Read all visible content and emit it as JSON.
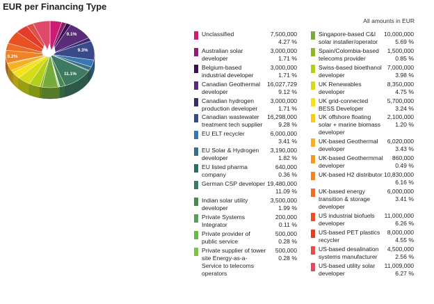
{
  "chart_data": {
    "type": "pie",
    "title": "EUR per Financing Type",
    "note": "All amounts in EUR",
    "slices": [
      {
        "label": "Unclassified",
        "amount": "7,500,000",
        "percent": "4.27 %",
        "value": 7500000,
        "color": "#d01b72"
      },
      {
        "label": "Australian solar developer",
        "amount": "3,000,000",
        "percent": "1.71 %",
        "value": 3000000,
        "color": "#8e1f70"
      },
      {
        "label": "Belgium-based industrial developer",
        "amount": "3,000,000",
        "percent": "1.71 %",
        "value": 3000000,
        "color": "#3c1050"
      },
      {
        "label": "Canadian Geothermal developer",
        "amount": "16,027,729",
        "percent": "9.12 %",
        "value": 16027729,
        "color": "#5a2b78"
      },
      {
        "label": "Canadian hydrogen production developer",
        "amount": "3,000,000",
        "percent": "1.71 %",
        "value": 3000000,
        "color": "#3b2b6b"
      },
      {
        "label": "Canadian wastewater treatment tech supplier",
        "amount": "16,298,000",
        "percent": "9.28 %",
        "value": 16298000,
        "color": "#3a4a88"
      },
      {
        "label": "EU ELT recycler",
        "amount": "6,000,000",
        "percent": "3.41 %",
        "value": 6000000,
        "color": "#3876b4"
      },
      {
        "label": "EU Solar & Hydrogen developer",
        "amount": "3,190,000",
        "percent": "1.82 %",
        "value": 3190000,
        "color": "#3b6f82"
      },
      {
        "label": "EU listed pharma company",
        "amount": "640,000",
        "percent": "0.36 %",
        "value": 640000,
        "color": "#2e6a67"
      },
      {
        "label": "German CSP developer",
        "amount": "19,480,000",
        "percent": "11.09 %",
        "value": 19480000,
        "color": "#3e7a62"
      },
      {
        "label": "Indian solar utility developer",
        "amount": "3,500,000",
        "percent": "1.99 %",
        "value": 3500000,
        "color": "#4a8a50"
      },
      {
        "label": "Private Systems Integrator",
        "amount": "200,000",
        "percent": "0.11 %",
        "value": 200000,
        "color": "#56a05c"
      },
      {
        "label": "Private provider of public service",
        "amount": "500,000",
        "percent": "0.28 %",
        "value": 500000,
        "color": "#68b84a"
      },
      {
        "label": "Private supplier of tower site Energy-as-a-Service to telecoms operators",
        "amount": "500,000",
        "percent": "0.28 %",
        "value": 500000,
        "color": "#7cc24a"
      },
      {
        "label": "Singapore-based C&I solar installer/operator",
        "amount": "10,000,000",
        "percent": "5.69 %",
        "value": 10000000,
        "color": "#76aa3a"
      },
      {
        "label": "Spain/Colombia-based telecoms provider",
        "amount": "1,500,000",
        "percent": "0.85 %",
        "value": 1500000,
        "color": "#8eb828"
      },
      {
        "label": "Swiss-based bioethanol developer",
        "amount": "7,000,000",
        "percent": "3.98 %",
        "value": 7000000,
        "color": "#b2cf1a"
      },
      {
        "label": "UK Renewables developer",
        "amount": "8,350,000",
        "percent": "4.75 %",
        "value": 8350000,
        "color": "#d7dc18"
      },
      {
        "label": "UK grid-connected BESS Developer",
        "amount": "5,700,000",
        "percent": "3.24 %",
        "value": 5700000,
        "color": "#f4e21a"
      },
      {
        "label": "UK offshore floating solar + marine biomass developer",
        "amount": "2,100,000",
        "percent": "1.20 %",
        "value": 2100000,
        "color": "#f8cc18"
      },
      {
        "label": "UK-based Geothermal developer",
        "amount": "6,020,000",
        "percent": "3.43 %",
        "value": 6020000,
        "color": "#f6b022"
      },
      {
        "label": "UK-based Geothermmal developer",
        "amount": "860,000",
        "percent": "0.49 %",
        "value": 860000,
        "color": "#f39a22"
      },
      {
        "label": "UK-based H2 distributor",
        "amount": "10,830,000",
        "percent": "6.16 %",
        "value": 10830000,
        "color": "#f08324"
      },
      {
        "label": "UK-based energy transition & storage developer",
        "amount": "6,000,000",
        "percent": "3.41 %",
        "value": 6000000,
        "color": "#ee6c24"
      },
      {
        "label": "US industrial biofuels developer",
        "amount": "11,000,000",
        "percent": "6.26 %",
        "value": 11000000,
        "color": "#e85222"
      },
      {
        "label": "US-based PET plastics recycler",
        "amount": "8,000,000",
        "percent": "4.55 %",
        "value": 8000000,
        "color": "#e43c2a"
      },
      {
        "label": "US-based desalination systems manufacturer",
        "amount": "4,500,000",
        "percent": "2.56 %",
        "value": 4500000,
        "color": "#e0504a"
      },
      {
        "label": "US-based utility solar developer",
        "amount": "11,009,000",
        "percent": "6.27 %",
        "value": 11009000,
        "color": "#e04a6a"
      }
    ],
    "pie_labels": [
      "9.1%",
      "9.3%",
      "11.1%",
      "6.2%"
    ]
  }
}
